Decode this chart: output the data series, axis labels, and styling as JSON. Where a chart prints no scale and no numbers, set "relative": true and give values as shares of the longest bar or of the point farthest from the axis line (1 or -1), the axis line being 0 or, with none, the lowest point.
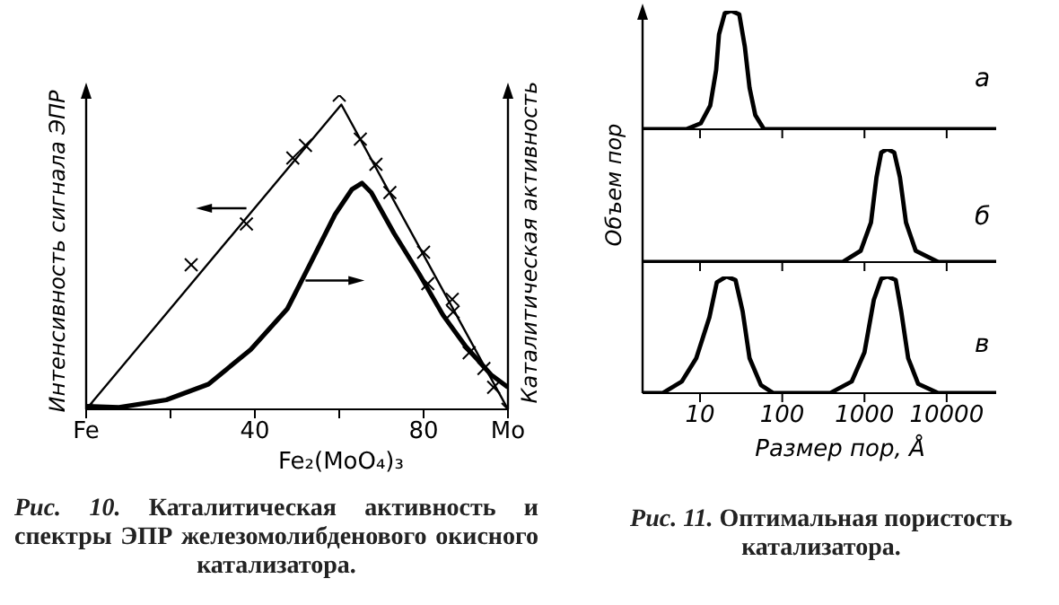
{
  "chart_data": [
    {
      "type": "line",
      "xlabel": "Fe₂(MoO₄)₃",
      "ylabel": "Интенсивность сигнала ЭПР",
      "y2label": "Каталитическая активность",
      "relative": true,
      "xlim": [
        0,
        100
      ],
      "xticks": [
        {
          "value": 0,
          "label": "Fe"
        },
        {
          "value": 20,
          "label": null
        },
        40,
        {
          "value": 60,
          "label": null
        },
        80,
        {
          "value": 100,
          "label": "Mo"
        }
      ],
      "tick_labels": "x",
      "annotations": [
        "Рис. 10. Каталитическая активность и спектры ЭПР железомолибденового окисного катализатора."
      ],
      "series": [
        {
          "color": "#000000",
          "x": [
            0,
            60.5,
            100
          ],
          "values": [
            0,
            0.97,
            0
          ]
        },
        {
          "type": "scatter",
          "color": "#000000",
          "marker": "cross",
          "x": [
            0,
            24.9,
            38,
            49,
            52,
            60,
            65,
            68.7,
            72,
            80,
            81,
            86.8,
            87,
            90.8,
            94.3,
            96.6,
            100
          ],
          "values": [
            0,
            0.46,
            0.59,
            0.8,
            0.84,
            1,
            0.86,
            0.78,
            0.69,
            0.5,
            0.4,
            0.35,
            0.31,
            0.18,
            0.13,
            0.07,
            0
          ]
        },
        {
          "color": "#000000",
          "x": [
            0,
            7.8,
            19,
            29,
            39,
            47.7,
            53,
            59,
            63,
            65.4,
            67.6,
            73,
            79,
            84.6,
            90,
            96,
            100
          ],
          "values": [
            0.01,
            0.006,
            0.03,
            0.08,
            0.19,
            0.32,
            0.46,
            0.62,
            0.7,
            0.72,
            0.69,
            0.56,
            0.43,
            0.3,
            0.2,
            0.11,
            0.07
          ]
        }
      ]
    },
    {
      "type": "line",
      "log": "x",
      "relative": true,
      "xlim": [
        2,
        40000
      ],
      "xticks": [
        10,
        100,
        1000,
        10000
      ],
      "tick_labels": false,
      "annotations": [
        "а"
      ],
      "series": [
        {
          "color": "#000000",
          "x": [
            2,
            6.8,
            10.2,
            13.3,
            15.7,
            17,
            20,
            24,
            30,
            35,
            40,
            47,
            60,
            40000
          ],
          "values": [
            0,
            0,
            0.05,
            0.2,
            0.5,
            0.8,
            0.98,
            1,
            0.97,
            0.7,
            0.35,
            0.12,
            0,
            0
          ]
        }
      ]
    },
    {
      "type": "line",
      "log": "x",
      "relative": true,
      "xlim": [
        2,
        40000
      ],
      "xticks": [
        10,
        100,
        1000,
        10000
      ],
      "tick_labels": false,
      "ylabel": "Объем пор",
      "annotations": [
        "б"
      ],
      "series": [
        {
          "color": "#000000",
          "x": [
            2,
            540,
            900,
            1200,
            1400,
            1600,
            1900,
            2300,
            2700,
            3200,
            4200,
            7900,
            40000
          ],
          "values": [
            0,
            0,
            0.1,
            0.35,
            0.75,
            0.97,
            1,
            0.97,
            0.75,
            0.35,
            0.1,
            0,
            0
          ]
        }
      ]
    },
    {
      "type": "line",
      "log": "x",
      "relative": true,
      "xlim": [
        2,
        40000
      ],
      "xticks": [
        10,
        100,
        1000,
        10000
      ],
      "tick_labels": "x",
      "xlabel": "Размер пор, Å",
      "annotations": [
        "в",
        "Рис. 11. Оптимальная пористость катализатора."
      ],
      "series": [
        {
          "color": "#000000",
          "x": [
            2,
            3.5,
            6,
            9,
            13,
            16,
            21,
            27,
            33,
            40,
            55,
            78,
            380,
            700,
            1000,
            1300,
            1600,
            1900,
            2400,
            2800,
            3400,
            4500,
            7900,
            40000
          ],
          "values": [
            0,
            0,
            0.1,
            0.3,
            0.65,
            0.95,
            1,
            0.97,
            0.7,
            0.3,
            0.07,
            0,
            0,
            0.1,
            0.35,
            0.8,
            0.98,
            1,
            0.97,
            0.7,
            0.3,
            0.08,
            0,
            0
          ]
        }
      ]
    }
  ]
}
